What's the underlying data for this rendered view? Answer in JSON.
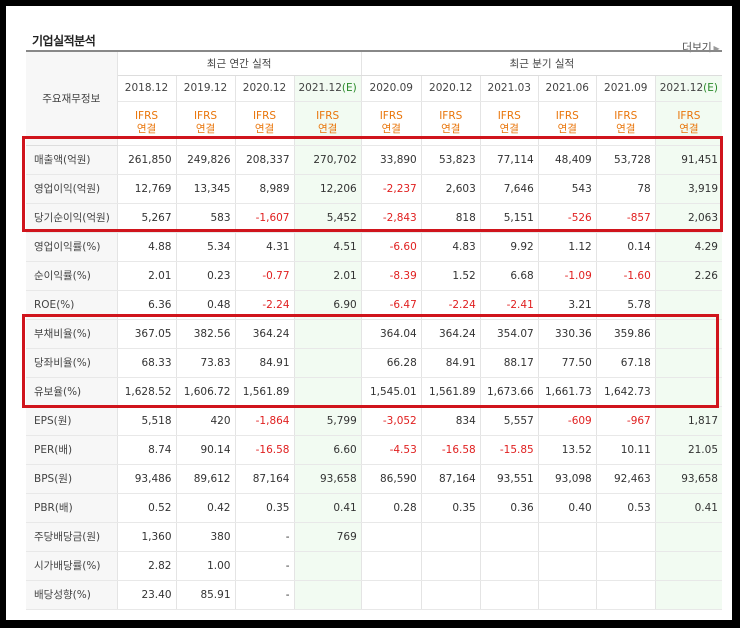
{
  "section_title": "기업실적분석",
  "more_link": "더보기",
  "table": {
    "row_header_label": "주요재무정보",
    "annual_group": "최근 연간 실적",
    "quarter_group": "최근 분기 실적",
    "columns": [
      "2018.12",
      "2019.12",
      "2020.12",
      "2021.12(E)",
      "2020.09",
      "2020.12",
      "2021.03",
      "2021.06",
      "2021.09",
      "2021.12(E)"
    ],
    "ifrs_line1": "IFRS",
    "ifrs_line2": "연결",
    "rows": [
      {
        "label": "매출액(억원)",
        "values": [
          "261,850",
          "249,826",
          "208,337",
          "270,702",
          "33,890",
          "53,823",
          "77,114",
          "48,409",
          "53,728",
          "91,451"
        ]
      },
      {
        "label": "영업이익(억원)",
        "values": [
          "12,769",
          "13,345",
          "8,989",
          "12,206",
          "-2,237",
          "2,603",
          "7,646",
          "543",
          "78",
          "3,919"
        ]
      },
      {
        "label": "당기순이익(억원)",
        "values": [
          "5,267",
          "583",
          "-1,607",
          "5,452",
          "-2,843",
          "818",
          "5,151",
          "-526",
          "-857",
          "2,063"
        ]
      },
      {
        "label": "영업이익률(%)",
        "values": [
          "4.88",
          "5.34",
          "4.31",
          "4.51",
          "-6.60",
          "4.83",
          "9.92",
          "1.12",
          "0.14",
          "4.29"
        ]
      },
      {
        "label": "순이익률(%)",
        "values": [
          "2.01",
          "0.23",
          "-0.77",
          "2.01",
          "-8.39",
          "1.52",
          "6.68",
          "-1.09",
          "-1.60",
          "2.26"
        ]
      },
      {
        "label": "ROE(%)",
        "values": [
          "6.36",
          "0.48",
          "-2.24",
          "6.90",
          "-6.47",
          "-2.24",
          "-2.41",
          "3.21",
          "5.78",
          ""
        ]
      },
      {
        "label": "부채비율(%)",
        "values": [
          "367.05",
          "382.56",
          "364.24",
          "",
          "364.04",
          "364.24",
          "354.07",
          "330.36",
          "359.86",
          ""
        ]
      },
      {
        "label": "당좌비율(%)",
        "values": [
          "68.33",
          "73.83",
          "84.91",
          "",
          "66.28",
          "84.91",
          "88.17",
          "77.50",
          "67.18",
          ""
        ]
      },
      {
        "label": "유보율(%)",
        "values": [
          "1,628.52",
          "1,606.72",
          "1,561.89",
          "",
          "1,545.01",
          "1,561.89",
          "1,673.66",
          "1,661.73",
          "1,642.73",
          ""
        ]
      },
      {
        "label": "EPS(원)",
        "values": [
          "5,518",
          "420",
          "-1,864",
          "5,799",
          "-3,052",
          "834",
          "5,557",
          "-609",
          "-967",
          "1,817"
        ]
      },
      {
        "label": "PER(배)",
        "values": [
          "8.74",
          "90.14",
          "-16.58",
          "6.60",
          "-4.53",
          "-16.58",
          "-15.85",
          "13.52",
          "10.11",
          "21.05"
        ]
      },
      {
        "label": "BPS(원)",
        "values": [
          "93,486",
          "89,612",
          "87,164",
          "93,658",
          "86,590",
          "87,164",
          "93,551",
          "93,098",
          "92,463",
          "93,658"
        ]
      },
      {
        "label": "PBR(배)",
        "values": [
          "0.52",
          "0.42",
          "0.35",
          "0.41",
          "0.28",
          "0.35",
          "0.36",
          "0.40",
          "0.53",
          "0.41"
        ]
      },
      {
        "label": "주당배당금(원)",
        "values": [
          "1,360",
          "380",
          "-",
          "769",
          "",
          "",
          "",
          "",
          "",
          ""
        ]
      },
      {
        "label": "시가배당률(%)",
        "values": [
          "2.82",
          "1.00",
          "-",
          "",
          "",
          "",
          "",
          "",
          "",
          ""
        ]
      },
      {
        "label": "배당성향(%)",
        "values": [
          "23.40",
          "85.91",
          "-",
          "",
          "",
          "",
          "",
          "",
          "",
          ""
        ]
      }
    ]
  },
  "colors": {
    "negative": "#e02020",
    "ifrs": "#e9750a",
    "estimate_bg": "#f2fbf2",
    "highlight_box": "#d0141c"
  }
}
